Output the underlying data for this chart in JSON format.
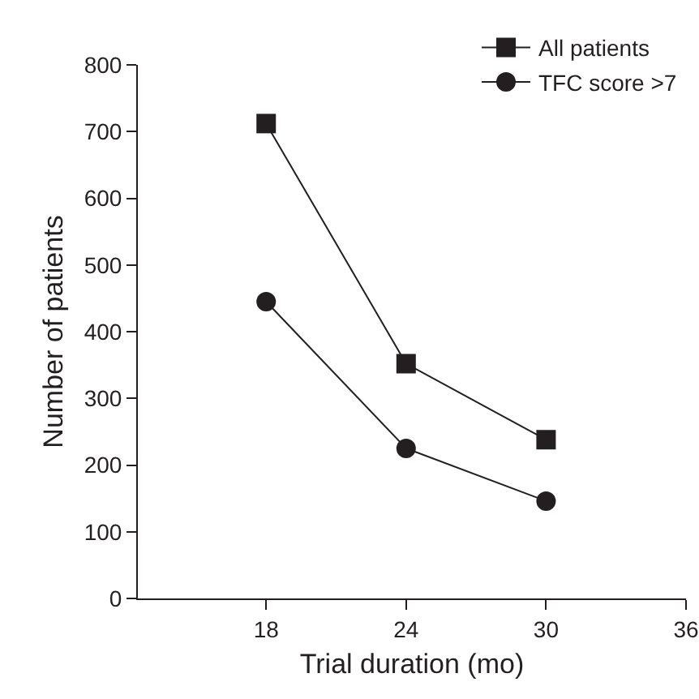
{
  "chart_data": {
    "type": "line",
    "xlabel": "Trial duration (mo)",
    "ylabel": "Number of patients",
    "x": [
      18,
      24,
      30
    ],
    "series": [
      {
        "name": "All patients",
        "color": "#231f20",
        "values": [
          712,
          352,
          238
        ],
        "marker": "square"
      },
      {
        "name": "TFC score >7",
        "color": "#231f20",
        "values": [
          445,
          225,
          146
        ],
        "marker": "circle"
      }
    ],
    "xlim": [
      12.5,
      36
    ],
    "xticks": [
      18,
      24,
      30,
      36
    ],
    "ylim": [
      0,
      800
    ],
    "yticks": [
      0,
      100,
      200,
      300,
      400,
      500,
      600,
      700,
      800
    ],
    "grid": false,
    "legend": "top right",
    "line_style": "solid"
  }
}
